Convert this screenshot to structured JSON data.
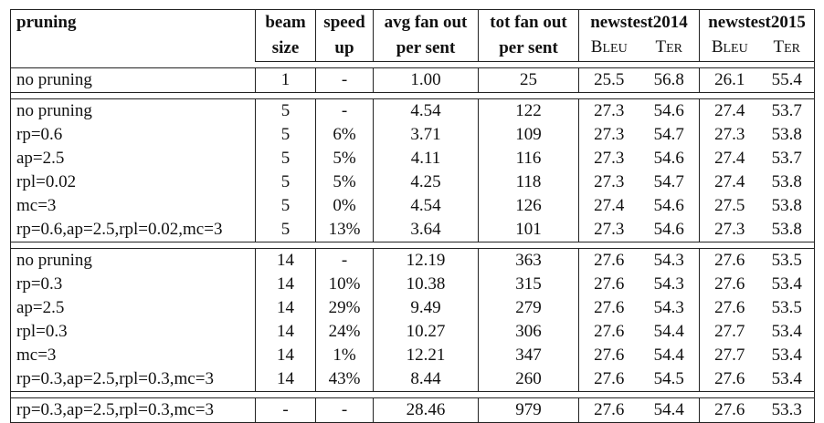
{
  "header": {
    "row1": [
      "pruning",
      "beam",
      "speed",
      "avg fan out",
      "tot fan out",
      "newstest2014",
      "newstest2015"
    ],
    "row2": [
      "size",
      "up",
      "per sent",
      "per sent"
    ],
    "metrics": [
      {
        "big": "B",
        "small": "LEU"
      },
      {
        "big": "T",
        "small": "ER"
      },
      {
        "big": "B",
        "small": "LEU"
      },
      {
        "big": "T",
        "small": "ER"
      }
    ]
  },
  "groups": [
    [
      [
        "no pruning",
        "1",
        "-",
        "1.00",
        "25",
        "25.5",
        "56.8",
        "26.1",
        "55.4"
      ]
    ],
    [
      [
        "no pruning",
        "5",
        "-",
        "4.54",
        "122",
        "27.3",
        "54.6",
        "27.4",
        "53.7"
      ],
      [
        "rp=0.6",
        "5",
        "6%",
        "3.71",
        "109",
        "27.3",
        "54.7",
        "27.3",
        "53.8"
      ],
      [
        "ap=2.5",
        "5",
        "5%",
        "4.11",
        "116",
        "27.3",
        "54.6",
        "27.4",
        "53.7"
      ],
      [
        "rpl=0.02",
        "5",
        "5%",
        "4.25",
        "118",
        "27.3",
        "54.7",
        "27.4",
        "53.8"
      ],
      [
        "mc=3",
        "5",
        "0%",
        "4.54",
        "126",
        "27.4",
        "54.6",
        "27.5",
        "53.8"
      ],
      [
        "rp=0.6,ap=2.5,rpl=0.02,mc=3",
        "5",
        "13%",
        "3.64",
        "101",
        "27.3",
        "54.6",
        "27.3",
        "53.8"
      ]
    ],
    [
      [
        "no pruning",
        "14",
        "-",
        "12.19",
        "363",
        "27.6",
        "54.3",
        "27.6",
        "53.5"
      ],
      [
        "rp=0.3",
        "14",
        "10%",
        "10.38",
        "315",
        "27.6",
        "54.3",
        "27.6",
        "53.4"
      ],
      [
        "ap=2.5",
        "14",
        "29%",
        "9.49",
        "279",
        "27.6",
        "54.3",
        "27.6",
        "53.5"
      ],
      [
        "rpl=0.3",
        "14",
        "24%",
        "10.27",
        "306",
        "27.6",
        "54.4",
        "27.7",
        "53.4"
      ],
      [
        "mc=3",
        "14",
        "1%",
        "12.21",
        "347",
        "27.6",
        "54.4",
        "27.7",
        "53.4"
      ],
      [
        "rp=0.3,ap=2.5,rpl=0.3,mc=3",
        "14",
        "43%",
        "8.44",
        "260",
        "27.6",
        "54.5",
        "27.6",
        "53.4"
      ]
    ],
    [
      [
        "rp=0.3,ap=2.5,rpl=0.3,mc=3",
        "-",
        "-",
        "28.46",
        "979",
        "27.6",
        "54.4",
        "27.6",
        "53.3"
      ]
    ]
  ]
}
